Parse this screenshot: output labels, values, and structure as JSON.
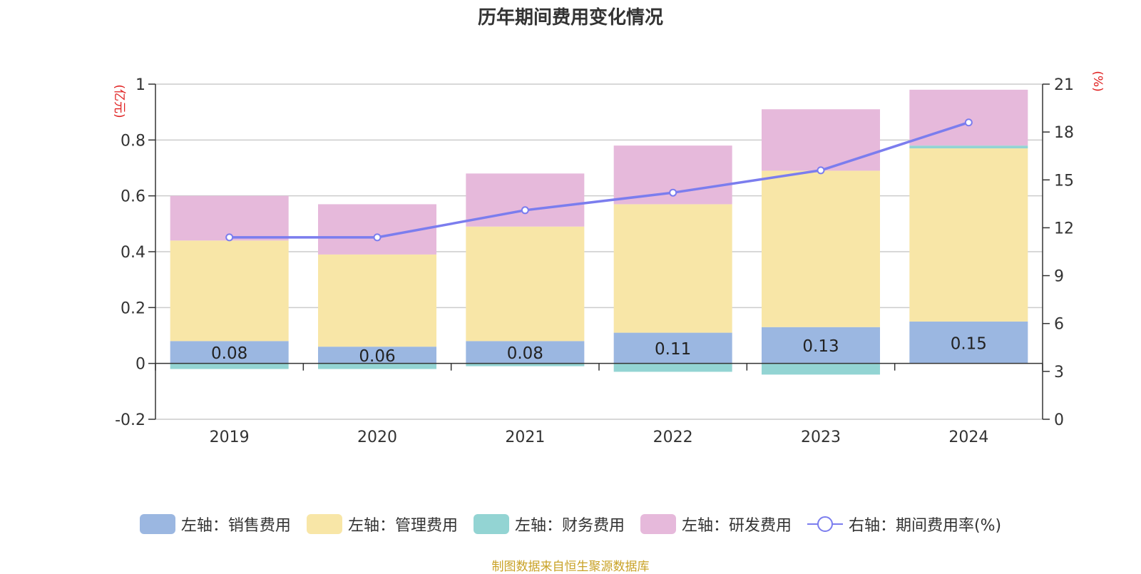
{
  "chart_data": {
    "type": "bar",
    "title": "历年期间费用变化情况",
    "categories": [
      "2019",
      "2020",
      "2021",
      "2022",
      "2023",
      "2024"
    ],
    "y_left": {
      "unit": "(亿元)",
      "min": -0.2,
      "max": 1,
      "ticks": [
        "-0.2",
        "0",
        "0.2",
        "0.4",
        "0.6",
        "0.8",
        "1"
      ]
    },
    "y_right": {
      "unit": "(%)",
      "min": 0,
      "max": 21,
      "ticks": [
        "0",
        "3",
        "6",
        "9",
        "12",
        "15",
        "18",
        "21"
      ]
    },
    "grid": true,
    "legend_position": "bottom",
    "series": [
      {
        "name": "左轴：销售费用",
        "kind": "bar",
        "axis": "left",
        "color": "#9BB7E1",
        "values": [
          0.08,
          0.06,
          0.08,
          0.11,
          0.13,
          0.15
        ],
        "labels": [
          "0.08",
          "0.06",
          "0.08",
          "0.11",
          "0.13",
          "0.15"
        ]
      },
      {
        "name": "左轴：管理费用",
        "kind": "bar",
        "axis": "left",
        "color": "#F8E6A7",
        "values": [
          0.36,
          0.33,
          0.41,
          0.46,
          0.56,
          0.62
        ]
      },
      {
        "name": "左轴：财务费用",
        "kind": "bar",
        "axis": "left",
        "color": "#93D4D3",
        "values": [
          -0.02,
          -0.02,
          -0.01,
          -0.03,
          -0.04,
          0.01
        ]
      },
      {
        "name": "左轴：研发费用",
        "kind": "bar",
        "axis": "left",
        "color": "#E6B9DB",
        "values": [
          0.16,
          0.18,
          0.19,
          0.21,
          0.22,
          0.2
        ]
      },
      {
        "name": "右轴：期间费用率(%)",
        "kind": "line",
        "axis": "right",
        "color": "#7B7DEE",
        "values": [
          11.4,
          11.4,
          13.1,
          14.2,
          15.6,
          18.6
        ]
      }
    ]
  },
  "source": "制图数据来自恒生聚源数据库"
}
